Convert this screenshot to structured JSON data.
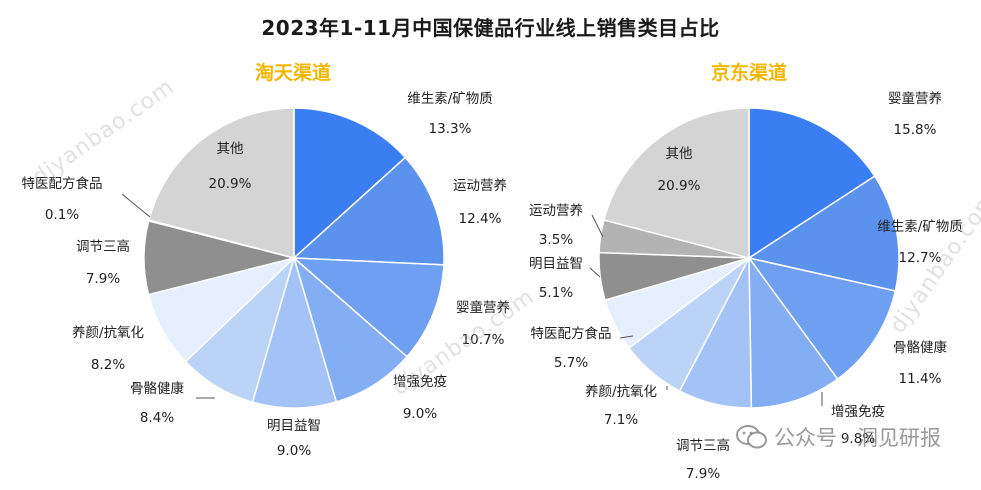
{
  "title": "2023年1-11月中国保健品行业线上销售类目占比",
  "colors": [
    "#3a7ef2",
    "#5b92ee",
    "#6e9ff0",
    "#8ab3f4",
    "#a6c5f6",
    "#bcd3f8",
    "#d3e3fb",
    "#e6effd",
    "#8f8f8f",
    "#b9b9b9",
    "#d0d0d0"
  ],
  "chart_data": [
    {
      "type": "pie",
      "title": "淘天渠道",
      "slices": [
        {
          "label": "维生素/矿物质",
          "value": 13.3,
          "text": "13.3%",
          "color": "#3a7ef2"
        },
        {
          "label": "运动营养",
          "value": 12.4,
          "text": "12.4%",
          "color": "#5b92ee"
        },
        {
          "label": "婴童营养",
          "value": 10.7,
          "text": "10.7%",
          "color": "#6e9ff0"
        },
        {
          "label": "增强免疫",
          "value": 9.0,
          "text": "9.0%",
          "color": "#84aef3"
        },
        {
          "label": "明目益智",
          "value": 9.0,
          "text": "9.0%",
          "color": "#a3c2f6"
        },
        {
          "label": "骨骼健康",
          "value": 8.4,
          "text": "8.4%",
          "color": "#bcd3f8"
        },
        {
          "label": "养颜/抗氧化",
          "value": 8.2,
          "text": "8.2%",
          "color": "#e6effd"
        },
        {
          "label": "调节三高",
          "value": 7.9,
          "text": "7.9%",
          "color": "#8f8f8f"
        },
        {
          "label": "特医配方食品",
          "value": 0.1,
          "text": "0.1%",
          "color": "#b3b3b3"
        },
        {
          "label": "其他",
          "value": 20.9,
          "text": "20.9%",
          "color": "#d4d4d4"
        }
      ]
    },
    {
      "type": "pie",
      "title": "京东渠道",
      "slices": [
        {
          "label": "婴童营养",
          "value": 15.8,
          "text": "15.8%",
          "color": "#3a7ef2"
        },
        {
          "label": "维生素/矿物质",
          "value": 12.7,
          "text": "12.7%",
          "color": "#5b92ee"
        },
        {
          "label": "骨骼健康",
          "value": 11.4,
          "text": "11.4%",
          "color": "#6e9ff0"
        },
        {
          "label": "增强免疫",
          "value": 9.8,
          "text": "9.8%",
          "color": "#84aef3"
        },
        {
          "label": "调节三高",
          "value": 7.9,
          "text": "7.9%",
          "color": "#a3c2f6"
        },
        {
          "label": "养颜/抗氧化",
          "value": 7.1,
          "text": "7.1%",
          "color": "#bcd3f8"
        },
        {
          "label": "特医配方食品",
          "value": 5.7,
          "text": "5.7%",
          "color": "#e6effd"
        },
        {
          "label": "明目益智",
          "value": 5.1,
          "text": "5.1%",
          "color": "#8f8f8f"
        },
        {
          "label": "运动营养",
          "value": 3.5,
          "text": "3.5%",
          "color": "#b3b3b3"
        },
        {
          "label": "其他",
          "value": 20.9,
          "text": "20.9%",
          "color": "#d4d4d4"
        }
      ]
    }
  ],
  "watermarks": [
    "djyanbao.com",
    "djyanbao.com",
    "djyanbao.com"
  ],
  "source_text": "公众号 · 洞见研报"
}
